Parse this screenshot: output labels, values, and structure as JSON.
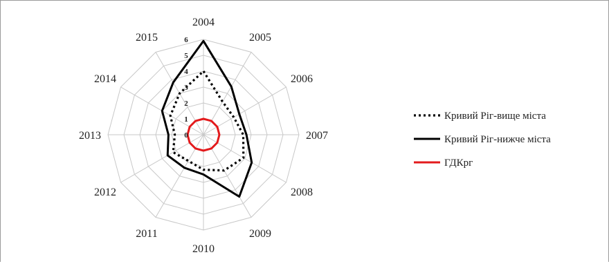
{
  "chart_data": {
    "type": "radar",
    "categories": [
      "2004",
      "2005",
      "2006",
      "2007",
      "2008",
      "2009",
      "2010",
      "2011",
      "2012",
      "2013",
      "2014",
      "2015"
    ],
    "radial_ticks": [
      "0",
      "1",
      "2",
      "3",
      "4",
      "5",
      "6"
    ],
    "rlim": [
      0,
      6
    ],
    "grid": true,
    "legend_position": "right",
    "series": [
      {
        "name": "Кривий Ріг-вище міста",
        "color": "#000000",
        "style": "dotted",
        "values": [
          4.0,
          2.4,
          2.2,
          2.5,
          2.9,
          2.6,
          2.2,
          1.9,
          2.2,
          1.8,
          2.4,
          3.0
        ]
      },
      {
        "name": "Кривий Ріг-нижче міста",
        "color": "#000000",
        "style": "solid",
        "values": [
          5.9,
          3.5,
          2.6,
          2.7,
          3.5,
          4.5,
          2.5,
          2.4,
          2.6,
          2.2,
          3.0,
          3.8
        ]
      },
      {
        "name": "ГДКрг",
        "color": "#e31a1c",
        "style": "solid",
        "values": [
          1.0,
          1.0,
          1.0,
          1.0,
          1.0,
          1.0,
          1.0,
          1.0,
          1.0,
          1.0,
          1.0,
          1.0
        ]
      }
    ]
  }
}
